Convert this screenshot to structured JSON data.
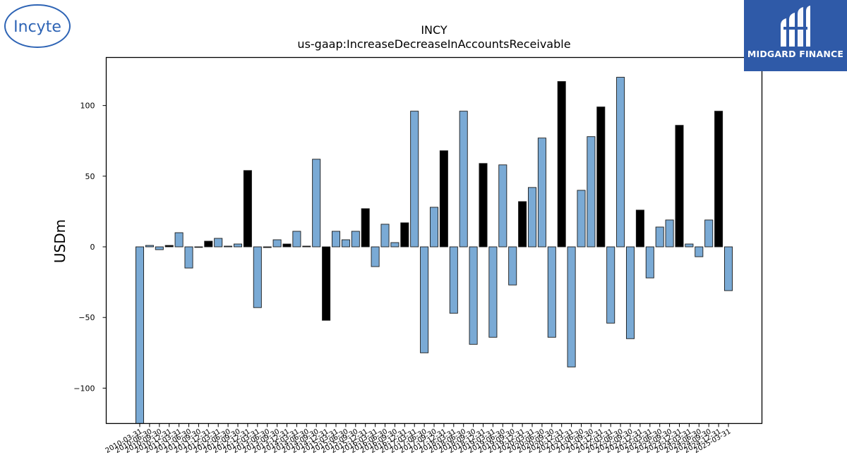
{
  "logos": {
    "left_brand": "Incyte",
    "right_brand": "MIDGARD FINANCE"
  },
  "chart_data": {
    "type": "bar",
    "title": "INCY",
    "subtitle": "us-gaap:IncreaseDecreaseInAccountsReceivable",
    "xlabel": "",
    "ylabel": "USDm",
    "ylim": [
      -125,
      134
    ],
    "yticks": [
      -100,
      -50,
      0,
      50,
      100
    ],
    "grid": false,
    "colors": {
      "quarter": "#7aaad5",
      "fy_q4": "#000000",
      "edge": "#1a1a1a"
    },
    "categories": [
      "2010-03-31",
      "2010-06-30",
      "2010-09-30",
      "2010-12-31",
      "2011-03-31",
      "2011-06-30",
      "2011-09-30",
      "2011-12-31",
      "2012-03-31",
      "2012-06-30",
      "2012-09-30",
      "2012-12-31",
      "2013-03-31",
      "2013-06-30",
      "2013-09-30",
      "2013-12-31",
      "2014-03-31",
      "2014-06-30",
      "2014-09-30",
      "2014-12-31",
      "2015-03-31",
      "2015-06-30",
      "2015-09-30",
      "2015-12-31",
      "2016-03-31",
      "2016-06-30",
      "2016-09-30",
      "2016-12-31",
      "2017-03-31",
      "2017-06-30",
      "2017-09-30",
      "2017-12-31",
      "2018-03-31",
      "2018-06-30",
      "2018-09-30",
      "2018-12-31",
      "2019-03-31",
      "2019-06-30",
      "2019-09-30",
      "2019-12-31",
      "2020-03-31",
      "2020-06-30",
      "2020-09-30",
      "2020-12-31",
      "2021-03-31",
      "2021-06-30",
      "2021-09-30",
      "2021-12-31",
      "2022-03-31",
      "2022-06-30",
      "2022-09-30",
      "2022-12-31",
      "2023-03-31",
      "2023-06-30",
      "2023-09-30",
      "2023-12-31",
      "2024-03-31",
      "2024-06-30",
      "2024-09-30",
      "2024-12-31",
      "2025-03-31"
    ],
    "values": [
      -125,
      1,
      -2,
      1,
      10,
      -15,
      0,
      4,
      6,
      0.5,
      2,
      54,
      -43,
      -0.5,
      5,
      2,
      11,
      0.5,
      62,
      -52,
      11,
      5,
      11,
      27,
      -14,
      16,
      3,
      17,
      96,
      -75,
      28,
      68,
      -47,
      96,
      -69,
      59,
      -64,
      58,
      -27,
      32,
      42,
      77,
      -64,
      117,
      -85,
      40,
      78,
      99,
      -54,
      120,
      -65,
      26,
      -22,
      14,
      19,
      86,
      2,
      -7,
      19,
      96,
      -31
    ],
    "bar_color_keys": [
      "quarter",
      "quarter",
      "quarter",
      "fy_q4",
      "quarter",
      "quarter",
      "quarter",
      "fy_q4",
      "quarter",
      "quarter",
      "quarter",
      "fy_q4",
      "quarter",
      "fy_q4",
      "quarter",
      "fy_q4",
      "quarter",
      "fy_q4",
      "quarter",
      "fy_q4",
      "quarter",
      "quarter",
      "quarter",
      "fy_q4",
      "quarter",
      "quarter",
      "quarter",
      "fy_q4",
      "quarter",
      "quarter",
      "quarter",
      "fy_q4",
      "quarter",
      "quarter",
      "quarter",
      "fy_q4",
      "quarter",
      "quarter",
      "quarter",
      "fy_q4",
      "quarter",
      "quarter",
      "quarter",
      "fy_q4",
      "quarter",
      "quarter",
      "quarter",
      "fy_q4",
      "quarter",
      "quarter",
      "quarter",
      "fy_q4",
      "quarter",
      "quarter",
      "quarter",
      "fy_q4",
      "quarter",
      "quarter",
      "quarter",
      "fy_q4",
      "quarter"
    ],
    "xtick_labels": [
      "2010-03-31",
      "2010-06-30",
      "2010-09-30",
      "2010-12-31",
      "2011-03-31",
      "2011-06-30",
      "2011-09-30",
      "2011-12-31",
      "2012-03-31",
      "2012-06-30",
      "2012-09-30",
      "2012-12-31",
      "2013-03-31",
      "2013-06-30",
      "2013-09-30",
      "2013-12-31",
      "2014-03-31",
      "2014-06-30",
      "2014-09-30",
      "2014-12-31",
      "2015-03-31",
      "2015-06-30",
      "2015-09-30",
      "2015-12-31",
      "2016-03-31",
      "2016-06-30",
      "2016-09-30",
      "2016-12-31",
      "2017-03-31",
      "2017-06-30",
      "2017-09-30",
      "2017-12-31",
      "2018-03-31",
      "2018-06-30",
      "2018-09-30",
      "2018-12-31",
      "2019-03-31",
      "2019-06-30",
      "2019-09-30",
      "2019-12-31",
      "2020-03-31",
      "2020-06-30",
      "2020-09-30",
      "2020-12-31",
      "2021-03-31",
      "2021-06-30",
      "2021-09-30",
      "2021-12-31",
      "2022-03-31",
      "2022-06-30",
      "2022-09-30",
      "2022-12-31",
      "2023-03-31",
      "2023-06-30",
      "2023-09-30",
      "2023-12-31",
      "2024-03-31",
      "2024-06-30",
      "2024-09-30",
      "2024-12-31",
      "2025-03-31"
    ]
  }
}
